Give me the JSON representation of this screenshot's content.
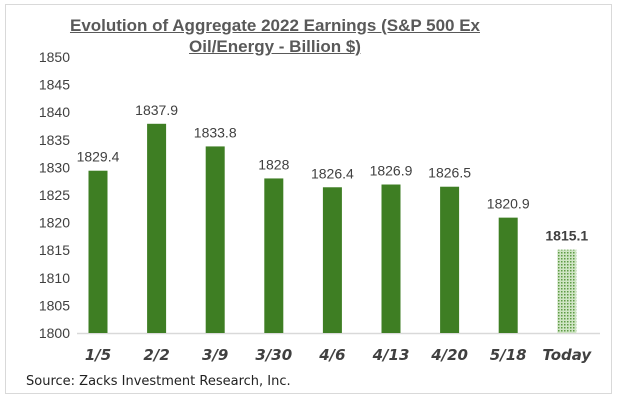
{
  "chart_data": {
    "type": "bar",
    "title": "Evolution of Aggregate 2022 Earnings (S&P 500 Ex Oil/Energy - Billion $)",
    "categories": [
      "1/5",
      "2/2",
      "3/9",
      "3/30",
      "4/6",
      "4/13",
      "4/20",
      "5/18",
      "Today"
    ],
    "values": [
      1829.4,
      1837.9,
      1833.8,
      1828,
      1826.4,
      1826.9,
      1826.5,
      1820.9,
      1815.1
    ],
    "data_labels": [
      "1829.4",
      "1837.9",
      "1833.8",
      "1828",
      "1826.4",
      "1826.9",
      "1826.5",
      "1820.9",
      "1815.1"
    ],
    "ylim": [
      1800,
      1850
    ],
    "yticks": [
      "1800",
      "1805",
      "1810",
      "1815",
      "1820",
      "1825",
      "1830",
      "1835",
      "1840",
      "1845",
      "1850"
    ],
    "xlabel": "",
    "ylabel": "",
    "grid": false,
    "colors": {
      "bar": "#3e7e23",
      "highlight_bar": "#a9cf96",
      "highlight_pattern": "dotted"
    },
    "source": "Source: Zacks Investment Research, Inc."
  }
}
